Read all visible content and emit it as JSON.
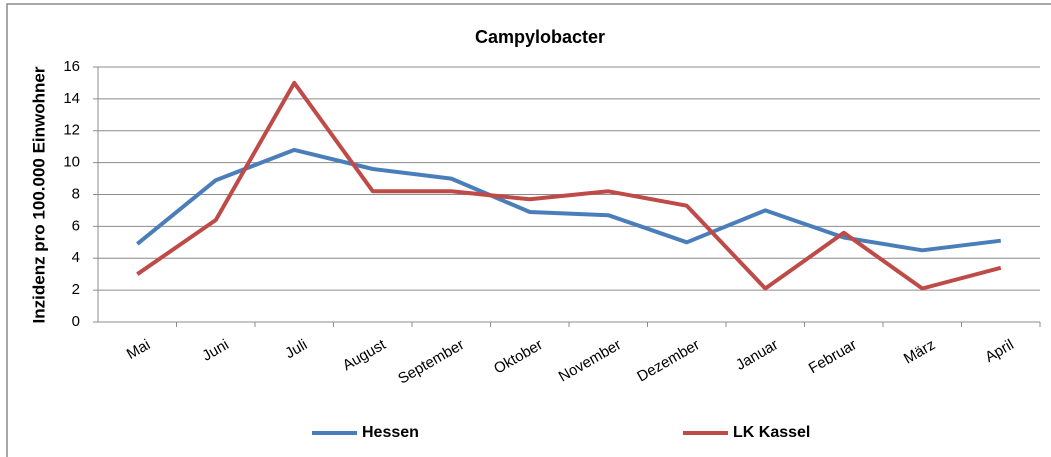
{
  "chart_data": {
    "type": "line",
    "title": "Campylobacter",
    "y_label": "Inzidenz pro 100.000 Einwohner",
    "categories": [
      "Mai",
      "Juni",
      "Juli",
      "August",
      "September",
      "Oktober",
      "November",
      "Dezember",
      "Januar",
      "Februar",
      "März",
      "April"
    ],
    "series": [
      {
        "name": "Hessen",
        "color": "#4a7ebb",
        "values": [
          4.9,
          8.9,
          10.8,
          9.6,
          9.0,
          6.9,
          6.7,
          5.0,
          7.0,
          5.3,
          4.5,
          5.1
        ]
      },
      {
        "name": "LK Kassel",
        "color": "#be4b48",
        "values": [
          3.0,
          6.4,
          15.0,
          8.2,
          8.2,
          7.7,
          8.2,
          7.3,
          2.1,
          5.6,
          2.1,
          3.4
        ]
      }
    ],
    "ylim": [
      0,
      16
    ],
    "yticks": [
      0,
      2,
      4,
      6,
      8,
      10,
      12,
      14,
      16
    ],
    "grid": true,
    "legend": "bottom"
  }
}
